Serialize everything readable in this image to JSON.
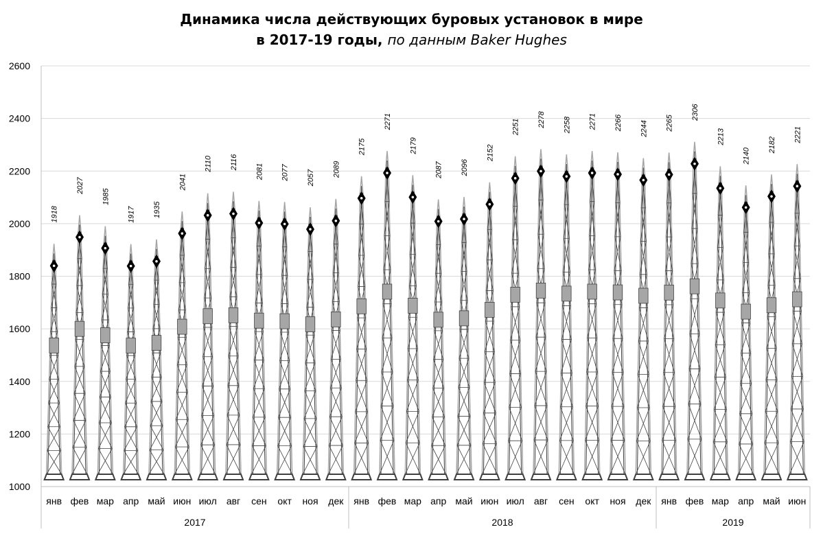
{
  "chart_data": {
    "type": "bar",
    "title_line1": "Динамика числа действующих буровых установок в мире",
    "title_line2_bold": "в 2017-19 годы,",
    "title_line2_italic": "по данным Baker Hughes",
    "ylim": [
      1000,
      2600
    ],
    "yticks": [
      1000,
      1200,
      1400,
      1600,
      1800,
      2000,
      2200,
      2400,
      2600
    ],
    "grid": true,
    "categories": [
      "янв",
      "фев",
      "мар",
      "апр",
      "май",
      "июн",
      "июл",
      "авг",
      "сен",
      "окт",
      "ноя",
      "дек",
      "янв",
      "фев",
      "мар",
      "апр",
      "май",
      "июн",
      "июл",
      "авг",
      "сен",
      "окт",
      "ноя",
      "дек",
      "янв",
      "фев",
      "мар",
      "апр",
      "май",
      "июн"
    ],
    "groups": [
      {
        "label": "2017",
        "count": 12
      },
      {
        "label": "2018",
        "count": 12
      },
      {
        "label": "2019",
        "count": 6
      }
    ],
    "values": [
      1918,
      2027,
      1985,
      1917,
      1935,
      2041,
      2110,
      2116,
      2081,
      2077,
      2057,
      2089,
      2175,
      2271,
      2179,
      2087,
      2096,
      2152,
      2251,
      2278,
      2258,
      2271,
      2266,
      2244,
      2265,
      2306,
      2213,
      2140,
      2182,
      2221
    ],
    "mark_style": "drilling-rig pictogram"
  },
  "colors": {
    "grid": "#d9d9d9",
    "axis": "#bfbfbf",
    "rig": "#404040",
    "rig_light": "#a6a6a6"
  }
}
